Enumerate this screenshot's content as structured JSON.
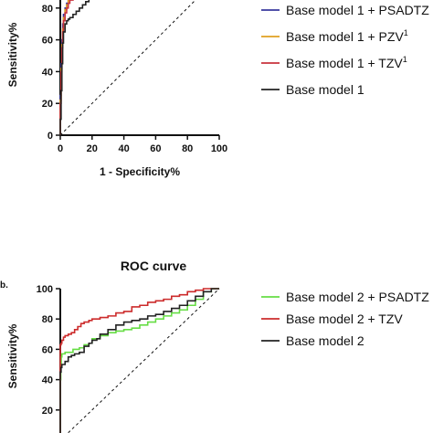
{
  "chart_data": [
    {
      "type": "line",
      "title": "",
      "xlabel": "1 - Specificity%",
      "ylabel": "Sensitivity%",
      "xlim": [
        0,
        100
      ],
      "ylim": [
        0,
        100
      ],
      "x_ticks": [
        "0",
        "20",
        "40",
        "60",
        "80",
        "100"
      ],
      "y_ticks": [
        "0",
        "20",
        "40",
        "60",
        "80"
      ],
      "legend_position": "right",
      "series": [
        {
          "name": "Base model 1 + PSADTZ",
          "color": "#3a3a9e",
          "x": [
            0,
            0.5,
            1,
            1.5,
            2,
            3,
            4,
            5,
            6,
            8,
            10,
            12,
            14,
            16,
            18,
            20,
            22,
            25,
            28,
            30,
            32,
            34
          ],
          "y": [
            0,
            25,
            45,
            60,
            70,
            76,
            80,
            83,
            86,
            88,
            90,
            92,
            94,
            96,
            97,
            98,
            99,
            100,
            100,
            100,
            100,
            100
          ]
        },
        {
          "name": "Base model 1 + PZV",
          "name_superscript": "1",
          "color": "#e0a020",
          "x": [
            0,
            0.5,
            1,
            1.5,
            2,
            3,
            4,
            5,
            6,
            8,
            10,
            12,
            14,
            16,
            18,
            20,
            22,
            25,
            28,
            31,
            34
          ],
          "y": [
            0,
            22,
            42,
            57,
            67,
            74,
            79,
            82,
            85,
            87,
            89,
            91,
            93,
            95,
            96,
            97,
            98,
            99,
            100,
            100,
            100
          ]
        },
        {
          "name": "Base model 1 + TZV",
          "name_superscript": "1",
          "color": "#c8323c",
          "x": [
            0,
            0.5,
            1,
            1.5,
            2,
            3,
            4,
            5,
            6,
            8,
            10,
            12,
            14,
            16,
            18,
            20,
            22,
            25,
            28,
            30,
            33
          ],
          "y": [
            0,
            20,
            40,
            55,
            65,
            72,
            77,
            80,
            83,
            85,
            87,
            89,
            91,
            93,
            94,
            96,
            97,
            98,
            99,
            99,
            100
          ]
        },
        {
          "name": "Base model 1",
          "color": "#222222",
          "x": [
            0,
            0.5,
            1,
            1.5,
            2,
            3,
            4,
            5,
            6,
            8,
            10,
            12,
            14,
            16,
            18,
            20,
            22,
            25,
            28,
            31,
            34
          ],
          "y": [
            0,
            10,
            28,
            45,
            58,
            65,
            70,
            72,
            73,
            74,
            76,
            78,
            80,
            82,
            84,
            86,
            88,
            90,
            92,
            96,
            100
          ]
        }
      ],
      "reference_line": "diagonal"
    },
    {
      "type": "line",
      "panel_label": "b.",
      "title": "ROC curve",
      "xlabel": "",
      "ylabel": "Sensitivity%",
      "xlim": [
        0,
        100
      ],
      "ylim": [
        0,
        100
      ],
      "y_ticks": [
        "20",
        "40",
        "60",
        "80",
        "100"
      ],
      "legend_position": "right",
      "series": [
        {
          "name": "Base model 2 + PSADTZ",
          "color": "#66dd44",
          "x": [
            0,
            0.3,
            0.6,
            1,
            3,
            5,
            8,
            10,
            12,
            15,
            18,
            20,
            25,
            30,
            35,
            40,
            45,
            50,
            55,
            60,
            65,
            70,
            75,
            80,
            85,
            90,
            95,
            100
          ],
          "y": [
            0,
            40,
            50,
            55,
            57,
            58,
            58,
            60,
            60,
            61,
            63,
            64,
            67,
            69,
            71,
            72,
            73,
            74,
            76,
            78,
            80,
            82,
            84,
            86,
            89,
            93,
            98,
            100
          ]
        },
        {
          "name": "Base model 2 + TZV",
          "color": "#cc2b2b",
          "x": [
            0,
            0.5,
            1,
            2,
            3,
            5,
            7,
            9,
            11,
            13,
            15,
            18,
            20,
            25,
            30,
            35,
            40,
            45,
            50,
            55,
            60,
            65,
            70,
            75,
            80,
            85,
            90,
            100
          ],
          "y": [
            0,
            63,
            64,
            66,
            68,
            69,
            70,
            71,
            73,
            75,
            77,
            78,
            79,
            80,
            81,
            82,
            84,
            85,
            88,
            89,
            91,
            92,
            93,
            95,
            96,
            98,
            99,
            100
          ]
        },
        {
          "name": "Base model 2",
          "color": "#222222",
          "x": [
            0,
            0.5,
            1,
            3,
            5,
            7,
            9,
            12,
            15,
            18,
            20,
            23,
            25,
            30,
            35,
            40,
            45,
            50,
            55,
            60,
            65,
            70,
            75,
            80,
            85,
            90,
            95,
            100
          ],
          "y": [
            0,
            45,
            48,
            50,
            52,
            55,
            56,
            57,
            58,
            62,
            64,
            66,
            67,
            70,
            73,
            76,
            78,
            79,
            80,
            82,
            83,
            85,
            87,
            89,
            92,
            95,
            98,
            100
          ]
        }
      ],
      "reference_line": "diagonal"
    }
  ]
}
